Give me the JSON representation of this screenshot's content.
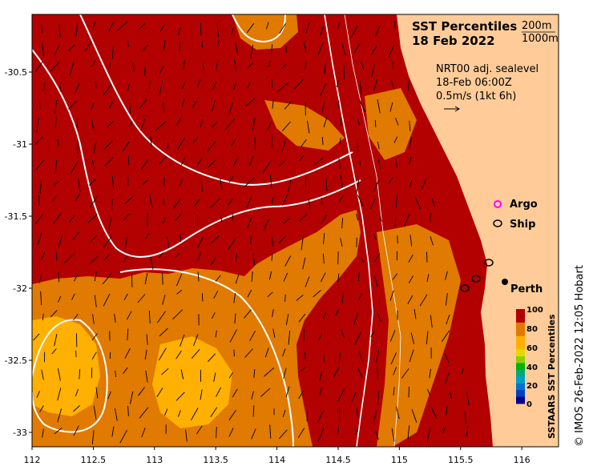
{
  "title": {
    "line1": "SST Percentiles",
    "line2": "18 Feb 2022"
  },
  "depth_legend": {
    "shallow": "200m",
    "deep": "1000m"
  },
  "current_info": {
    "line1": "NRT00 adj. sealevel",
    "line2": "18-Feb 06:00Z",
    "line3": "0.5m/s (1kt 6h)"
  },
  "markers": {
    "argo": "Argo",
    "ship": "Ship",
    "city": "Perth"
  },
  "colorbar": {
    "label": "SSTAARS SST Percentiles",
    "ticks": [
      "100",
      "80",
      "60",
      "40",
      "20",
      "0"
    ],
    "colors": [
      "#b30000",
      "#b30000",
      "#e07a00",
      "#e07a00",
      "#ffb000",
      "#ffb000",
      "#e6d800",
      "#8ccf00",
      "#00b300",
      "#00a87a",
      "#00a0c8",
      "#0070d0",
      "#0040c0",
      "#000090"
    ]
  },
  "axes": {
    "x_ticks": [
      "112",
      "112.5",
      "113",
      "113.5",
      "114",
      "114.5",
      "115",
      "115.5",
      "116"
    ],
    "y_ticks": [
      "-30.5",
      "-31",
      "-31.5",
      "-32",
      "-32.5",
      "-33"
    ],
    "lon_range": [
      112,
      116.3
    ],
    "lat_range": [
      -33.1,
      -30.1
    ]
  },
  "palette": {
    "high": "#b30000",
    "mid": "#e07a00",
    "low": "#ffb000",
    "land": "#ffcc99"
  },
  "copyright": "© IMOS 26-Feb-2022 12:05 Hobart"
}
